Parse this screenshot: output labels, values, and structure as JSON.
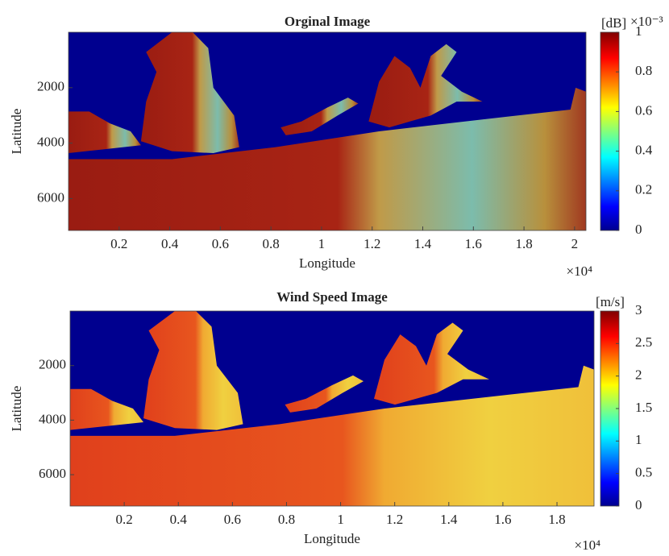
{
  "chart_data": [
    {
      "type": "image",
      "title": "Orginal Image",
      "xlabel": "Longitude",
      "ylabel": "Latitude",
      "xlim": [
        0,
        20450
      ],
      "xticks": [
        {
          "value": 2000,
          "label": "0.2"
        },
        {
          "value": 4000,
          "label": "0.4"
        },
        {
          "value": 6000,
          "label": "0.6"
        },
        {
          "value": 8000,
          "label": "0.8"
        },
        {
          "value": 10000,
          "label": "1"
        },
        {
          "value": 12000,
          "label": "1.2"
        },
        {
          "value": 14000,
          "label": "1.4"
        },
        {
          "value": 16000,
          "label": "1.6"
        },
        {
          "value": 18000,
          "label": "1.8"
        },
        {
          "value": 20000,
          "label": "2"
        }
      ],
      "x_exponent": "×10⁴",
      "ylim": [
        0,
        7150
      ],
      "yticks": [
        2000,
        4000,
        6000
      ],
      "y_reversed": true,
      "colorbar": {
        "label": "[dB]",
        "exponent": "×10⁻³",
        "lim": [
          0,
          1
        ],
        "ticks": [
          0,
          0.2,
          0.4,
          0.6,
          0.8,
          1
        ],
        "colormap": "jet"
      }
    },
    {
      "type": "image",
      "title": "Wind Speed Image",
      "xlabel": "Longitude",
      "ylabel": "Latitude",
      "xlim": [
        0,
        19370
      ],
      "xticks": [
        {
          "value": 2000,
          "label": "0.2"
        },
        {
          "value": 4000,
          "label": "0.4"
        },
        {
          "value": 6000,
          "label": "0.6"
        },
        {
          "value": 8000,
          "label": "0.8"
        },
        {
          "value": 10000,
          "label": "1"
        },
        {
          "value": 12000,
          "label": "1.2"
        },
        {
          "value": 14000,
          "label": "1.4"
        },
        {
          "value": 16000,
          "label": "1.6"
        },
        {
          "value": 18000,
          "label": "1.8"
        }
      ],
      "x_exponent": "×10⁴",
      "ylim": [
        0,
        7150
      ],
      "yticks": [
        2000,
        4000,
        6000
      ],
      "y_reversed": true,
      "colorbar": {
        "label": "[m/s]",
        "lim": [
          0,
          3
        ],
        "ticks": [
          0,
          0.5,
          1,
          1.5,
          2,
          2.5,
          3
        ],
        "colormap": "jet"
      }
    }
  ]
}
